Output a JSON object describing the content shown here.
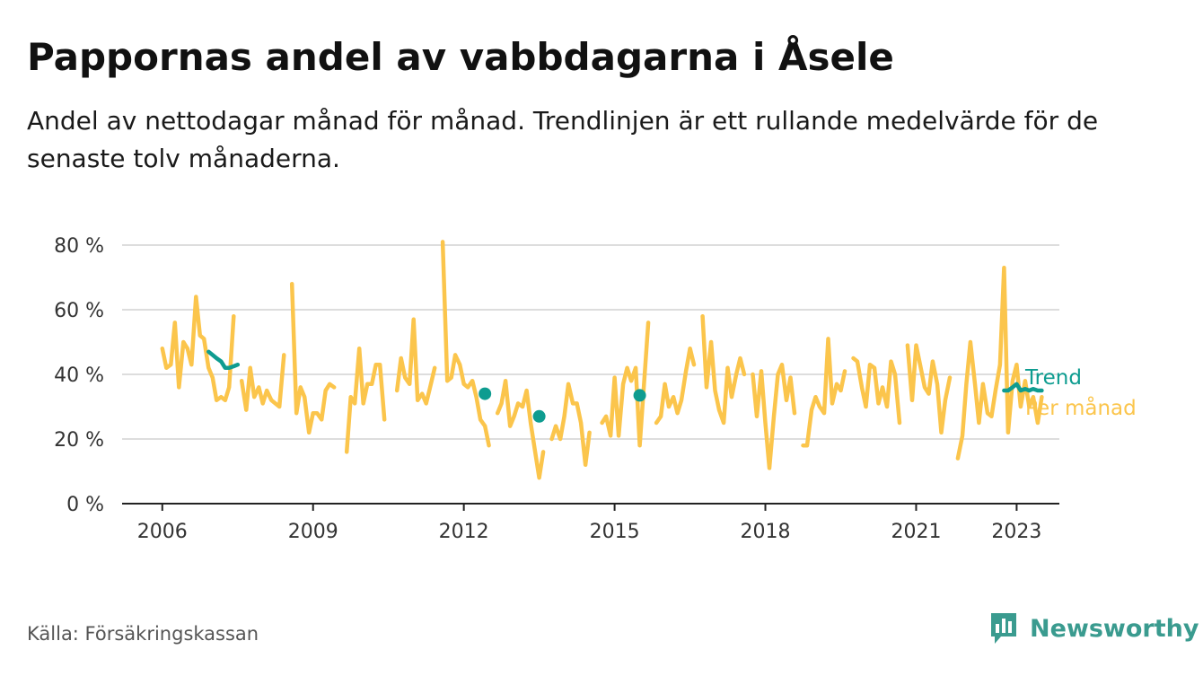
{
  "title": "Pappornas andel av vabbdagarna i Åsele",
  "subtitle": "Andel av nettodagar månad för månad. Trendlinjen är ett rullande medelvärde för de senaste tolv månaderna.",
  "source": "Källa: Försäkringskassan",
  "brand": "Newsworthy",
  "colors": {
    "monthly": "#fbc54c",
    "trend": "#0e9c90",
    "grid": "#dddddd",
    "axis": "#222222"
  },
  "chart_data": {
    "type": "line",
    "ylim": [
      0,
      80
    ],
    "yticks": [
      {
        "value": 0,
        "label": "0 %"
      },
      {
        "value": 20,
        "label": "20 %"
      },
      {
        "value": 40,
        "label": "40 %"
      },
      {
        "value": 60,
        "label": "60 %"
      },
      {
        "value": 80,
        "label": "80 %"
      }
    ],
    "xlim": [
      2005.2,
      2023.85
    ],
    "xticks": [
      {
        "value": 2006,
        "label": "2006"
      },
      {
        "value": 2009,
        "label": "2009"
      },
      {
        "value": 2012,
        "label": "2012"
      },
      {
        "value": 2015,
        "label": "2015"
      },
      {
        "value": 2018,
        "label": "2018"
      },
      {
        "value": 2021,
        "label": "2021"
      },
      {
        "value": 2023,
        "label": "2023"
      }
    ],
    "grid": true,
    "legend_position": "right",
    "series": [
      {
        "name": "Per månad",
        "color": "#fbc54c",
        "segments": [
          [
            [
              2006.0,
              48
            ],
            [
              2006.08,
              42
            ],
            [
              2006.17,
              43
            ],
            [
              2006.25,
              56
            ],
            [
              2006.33,
              36
            ],
            [
              2006.42,
              50
            ],
            [
              2006.5,
              48
            ],
            [
              2006.58,
              43
            ],
            [
              2006.67,
              64
            ],
            [
              2006.75,
              52
            ],
            [
              2006.83,
              51
            ],
            [
              2006.92,
              42
            ],
            [
              2007.0,
              39
            ],
            [
              2007.08,
              32
            ],
            [
              2007.17,
              33
            ],
            [
              2007.25,
              32
            ],
            [
              2007.33,
              36
            ],
            [
              2007.42,
              58
            ]
          ],
          [
            [
              2007.58,
              38
            ],
            [
              2007.67,
              29
            ],
            [
              2007.75,
              42
            ],
            [
              2007.83,
              33
            ],
            [
              2007.92,
              36
            ],
            [
              2008.0,
              31
            ],
            [
              2008.08,
              35
            ],
            [
              2008.17,
              32
            ],
            [
              2008.25,
              31
            ],
            [
              2008.33,
              30
            ],
            [
              2008.42,
              46
            ]
          ],
          [
            [
              2008.58,
              68
            ],
            [
              2008.67,
              28
            ],
            [
              2008.75,
              36
            ],
            [
              2008.83,
              33
            ],
            [
              2008.92,
              22
            ],
            [
              2009.0,
              28
            ],
            [
              2009.08,
              28
            ],
            [
              2009.17,
              26
            ],
            [
              2009.25,
              35
            ],
            [
              2009.33,
              37
            ],
            [
              2009.42,
              36
            ]
          ],
          [
            [
              2009.67,
              16
            ],
            [
              2009.75,
              33
            ],
            [
              2009.83,
              31
            ],
            [
              2009.92,
              48
            ],
            [
              2010.0,
              31
            ],
            [
              2010.08,
              37
            ],
            [
              2010.17,
              37
            ],
            [
              2010.25,
              43
            ],
            [
              2010.33,
              43
            ],
            [
              2010.42,
              26
            ]
          ],
          [
            [
              2010.67,
              35
            ],
            [
              2010.75,
              45
            ],
            [
              2010.83,
              39
            ],
            [
              2010.92,
              37
            ],
            [
              2011.0,
              57
            ],
            [
              2011.08,
              32
            ],
            [
              2011.17,
              34
            ],
            [
              2011.25,
              31
            ],
            [
              2011.33,
              36
            ],
            [
              2011.42,
              42
            ]
          ],
          [
            [
              2011.58,
              81
            ],
            [
              2011.67,
              38
            ],
            [
              2011.75,
              39
            ],
            [
              2011.83,
              46
            ],
            [
              2011.92,
              43
            ],
            [
              2012.0,
              37
            ],
            [
              2012.08,
              36
            ],
            [
              2012.17,
              38
            ],
            [
              2012.25,
              33
            ],
            [
              2012.33,
              26
            ],
            [
              2012.42,
              24
            ],
            [
              2012.5,
              18
            ]
          ],
          [
            [
              2012.67,
              28
            ],
            [
              2012.75,
              31
            ],
            [
              2012.83,
              38
            ],
            [
              2012.92,
              24
            ],
            [
              2013.0,
              27
            ],
            [
              2013.08,
              31
            ],
            [
              2013.17,
              30
            ],
            [
              2013.25,
              35
            ],
            [
              2013.33,
              25
            ],
            [
              2013.42,
              16
            ],
            [
              2013.5,
              8
            ],
            [
              2013.58,
              16
            ]
          ],
          [
            [
              2013.75,
              20
            ],
            [
              2013.83,
              24
            ],
            [
              2013.92,
              20
            ],
            [
              2014.0,
              27
            ],
            [
              2014.08,
              37
            ],
            [
              2014.17,
              31
            ],
            [
              2014.25,
              31
            ],
            [
              2014.33,
              25
            ],
            [
              2014.42,
              12
            ],
            [
              2014.5,
              22
            ]
          ],
          [
            [
              2014.75,
              25
            ],
            [
              2014.83,
              27
            ],
            [
              2014.92,
              21
            ],
            [
              2015.0,
              39
            ],
            [
              2015.08,
              21
            ],
            [
              2015.17,
              37
            ],
            [
              2015.25,
              42
            ],
            [
              2015.33,
              38
            ],
            [
              2015.42,
              42
            ],
            [
              2015.5,
              18
            ],
            [
              2015.58,
              36
            ],
            [
              2015.67,
              56
            ]
          ],
          [
            [
              2015.83,
              25
            ],
            [
              2015.92,
              27
            ],
            [
              2016.0,
              37
            ],
            [
              2016.08,
              30
            ],
            [
              2016.17,
              33
            ],
            [
              2016.25,
              28
            ],
            [
              2016.33,
              32
            ],
            [
              2016.42,
              41
            ],
            [
              2016.5,
              48
            ],
            [
              2016.58,
              43
            ]
          ],
          [
            [
              2016.75,
              58
            ],
            [
              2016.83,
              36
            ],
            [
              2016.92,
              50
            ],
            [
              2017.0,
              35
            ],
            [
              2017.08,
              29
            ],
            [
              2017.17,
              25
            ],
            [
              2017.25,
              42
            ],
            [
              2017.33,
              33
            ],
            [
              2017.42,
              40
            ],
            [
              2017.5,
              45
            ],
            [
              2017.58,
              40
            ]
          ],
          [
            [
              2017.75,
              40
            ],
            [
              2017.83,
              27
            ],
            [
              2017.92,
              41
            ],
            [
              2018.0,
              25
            ],
            [
              2018.08,
              11
            ],
            [
              2018.17,
              27
            ],
            [
              2018.25,
              40
            ],
            [
              2018.33,
              43
            ],
            [
              2018.42,
              32
            ],
            [
              2018.5,
              39
            ],
            [
              2018.58,
              28
            ]
          ],
          [
            [
              2018.75,
              18
            ],
            [
              2018.83,
              18
            ],
            [
              2018.92,
              29
            ],
            [
              2019.0,
              33
            ],
            [
              2019.08,
              30
            ],
            [
              2019.17,
              28
            ],
            [
              2019.25,
              51
            ],
            [
              2019.33,
              31
            ],
            [
              2019.42,
              37
            ],
            [
              2019.5,
              35
            ],
            [
              2019.58,
              41
            ]
          ],
          [
            [
              2019.75,
              45
            ],
            [
              2019.83,
              44
            ],
            [
              2019.92,
              36
            ],
            [
              2020.0,
              30
            ],
            [
              2020.08,
              43
            ],
            [
              2020.17,
              42
            ],
            [
              2020.25,
              31
            ],
            [
              2020.33,
              36
            ],
            [
              2020.42,
              30
            ],
            [
              2020.5,
              44
            ],
            [
              2020.58,
              40
            ],
            [
              2020.67,
              25
            ]
          ],
          [
            [
              2020.83,
              49
            ],
            [
              2020.92,
              32
            ],
            [
              2021.0,
              49
            ],
            [
              2021.08,
              43
            ],
            [
              2021.17,
              36
            ],
            [
              2021.25,
              34
            ],
            [
              2021.33,
              44
            ],
            [
              2021.42,
              37
            ],
            [
              2021.5,
              22
            ],
            [
              2021.58,
              32
            ],
            [
              2021.67,
              39
            ]
          ],
          [
            [
              2021.83,
              14
            ],
            [
              2021.92,
              21
            ],
            [
              2022.0,
              37
            ],
            [
              2022.08,
              50
            ],
            [
              2022.17,
              37
            ],
            [
              2022.25,
              25
            ],
            [
              2022.33,
              37
            ],
            [
              2022.42,
              28
            ],
            [
              2022.5,
              27
            ],
            [
              2022.58,
              35
            ],
            [
              2022.67,
              43
            ],
            [
              2022.75,
              73
            ],
            [
              2022.83,
              22
            ],
            [
              2022.92,
              38
            ],
            [
              2023.0,
              43
            ],
            [
              2023.08,
              30
            ],
            [
              2023.17,
              38
            ],
            [
              2023.25,
              30
            ],
            [
              2023.33,
              33
            ],
            [
              2023.42,
              25
            ],
            [
              2023.5,
              33
            ]
          ]
        ]
      },
      {
        "name": "Trend",
        "color": "#0e9c90",
        "segments": [
          [
            [
              2006.92,
              47
            ],
            [
              2007.0,
              46
            ],
            [
              2007.08,
              45
            ],
            [
              2007.17,
              44
            ],
            [
              2007.25,
              42
            ],
            [
              2007.33,
              42
            ],
            [
              2007.42,
              42.5
            ],
            [
              2007.5,
              43
            ]
          ],
          [
            [
              2012.42,
              34
            ]
          ],
          [
            [
              2013.5,
              27
            ]
          ],
          [
            [
              2015.5,
              33.5
            ]
          ],
          [
            [
              2022.75,
              35
            ],
            [
              2022.83,
              35
            ],
            [
              2022.92,
              36
            ],
            [
              2023.0,
              37
            ],
            [
              2023.08,
              35
            ],
            [
              2023.17,
              35.5
            ],
            [
              2023.25,
              35
            ],
            [
              2023.33,
              35.5
            ],
            [
              2023.42,
              35
            ],
            [
              2023.5,
              35
            ]
          ]
        ]
      }
    ],
    "legend": [
      {
        "label": "Trend",
        "color": "#0e9c90"
      },
      {
        "label": "Per månad",
        "color": "#fbc54c"
      }
    ]
  }
}
